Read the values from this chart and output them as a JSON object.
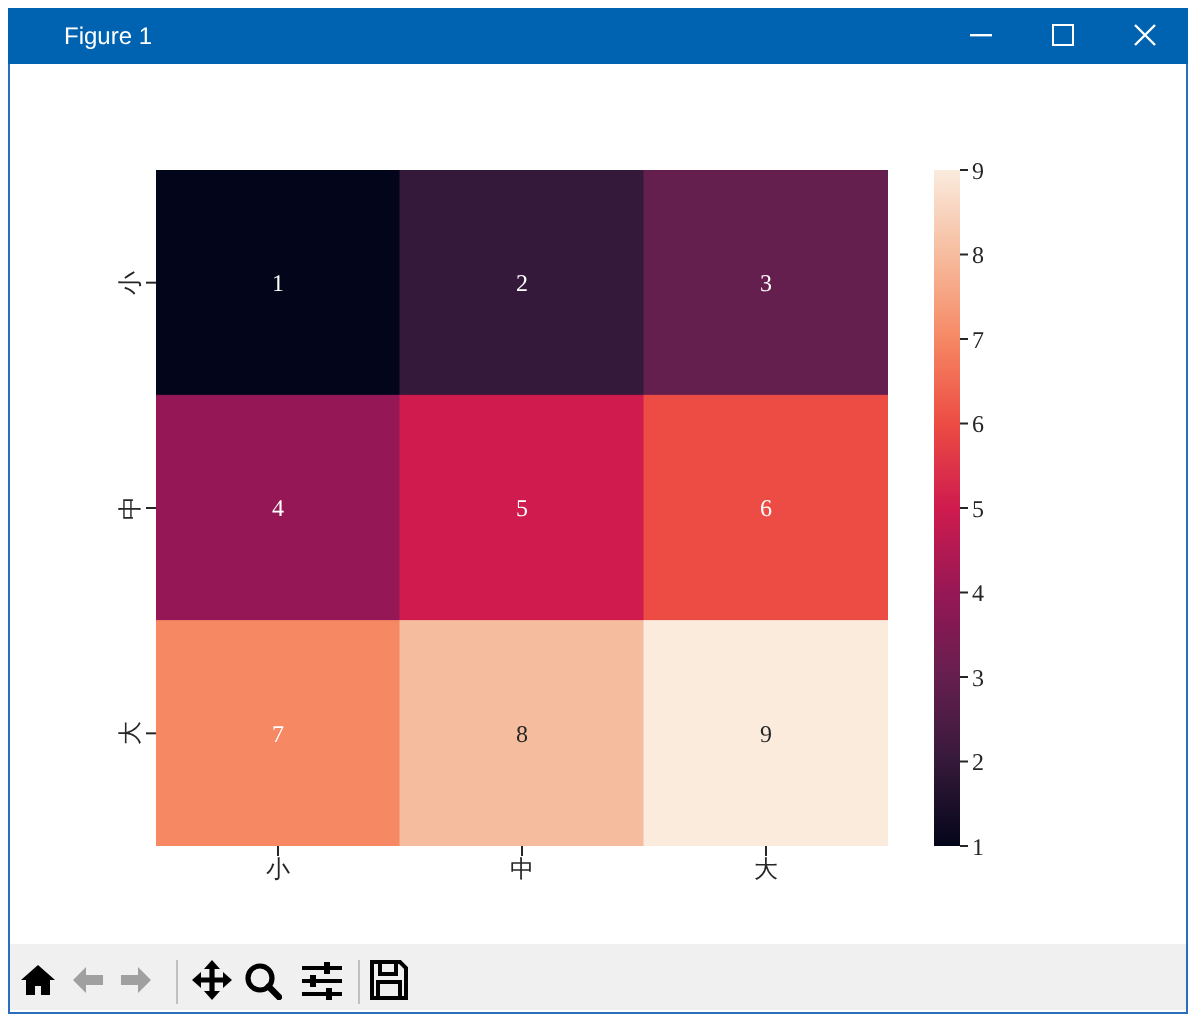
{
  "chart_data": {
    "type": "heatmap",
    "annotations": [
      "Figure 1"
    ],
    "categories": [
      "小",
      "中",
      "大"
    ],
    "y_categories": [
      "小",
      "中",
      "大"
    ],
    "cells": [
      [
        1,
        2,
        3
      ],
      [
        4,
        5,
        6
      ],
      [
        7,
        8,
        9
      ]
    ],
    "data_labels": true,
    "clim": [
      1,
      9
    ],
    "cticks": [
      1,
      2,
      3,
      4,
      5,
      6,
      7,
      8,
      9
    ],
    "colors": [
      "#03051a",
      "#35193a",
      "#651f4f",
      "#961755",
      "#cf1b4e",
      "#ec4c43",
      "#f68864",
      "#f6bc9e",
      "#faebdd"
    ]
  }
}
